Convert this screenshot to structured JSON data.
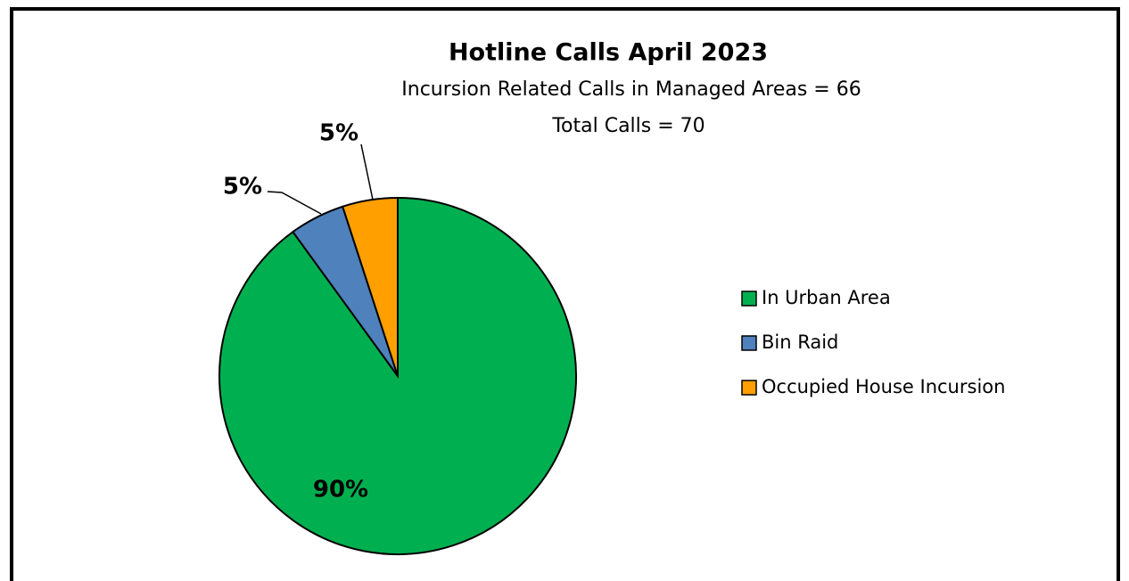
{
  "chart_data": {
    "type": "pie",
    "title": "Hotline Calls April 2023",
    "subtitle": [
      "Incursion Related Calls in Managed Areas  = 66",
      "Total Calls = 70"
    ],
    "categories": [
      "In Urban Area",
      "Bin Raid",
      "Occupied House Incursion"
    ],
    "values": [
      90,
      5,
      5
    ],
    "value_labels": [
      "90%",
      "5%",
      "5%"
    ],
    "colors": [
      "#00b050",
      "#4f81bd",
      "#ff9f00"
    ],
    "legend": "right"
  }
}
